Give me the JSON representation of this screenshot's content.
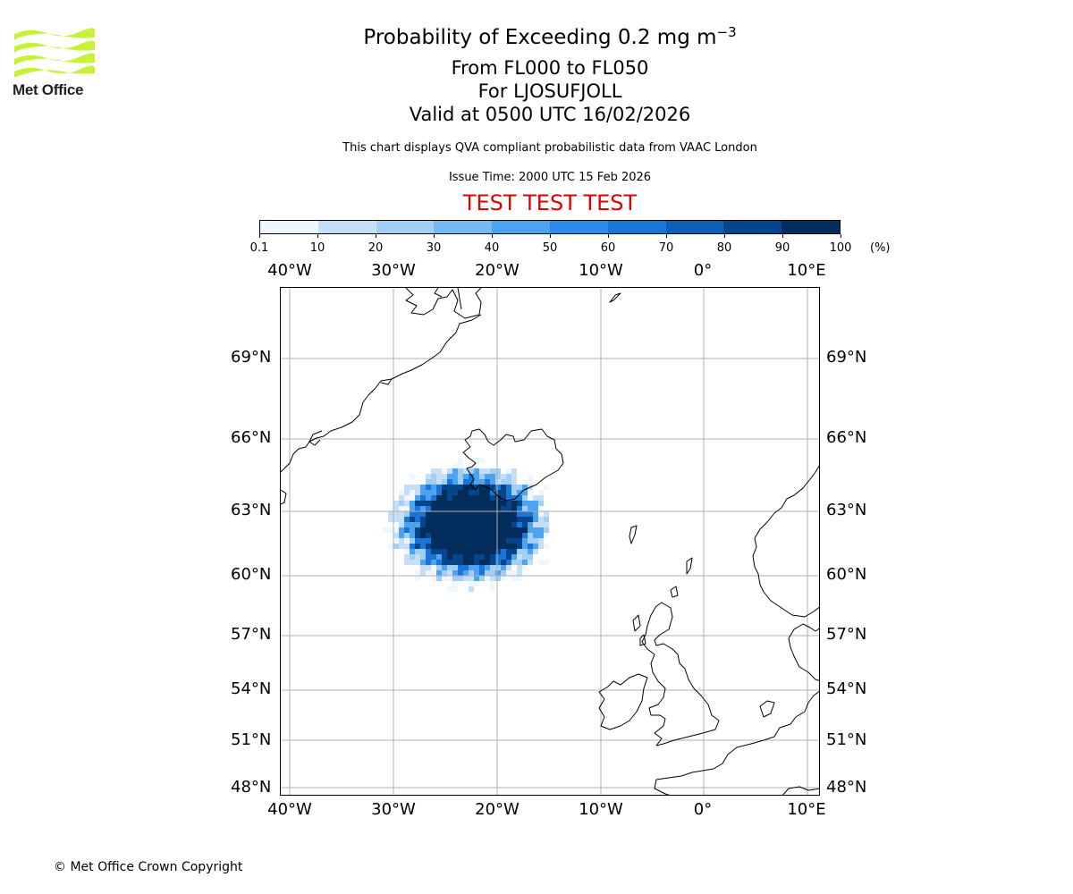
{
  "header": {
    "title_prefix": "Probability of Exceeding 0.2 mg m",
    "title_exponent": "−3",
    "flight_levels": "From FL000 to FL050",
    "volcano": "For LJOSUFJOLL",
    "valid": "Valid at 0500 UTC 16/02/2026",
    "subtitle": "This chart displays QVA compliant probabilistic data from VAAC London",
    "issue_time": "Issue Time: 2000 UTC 15 Feb 2026",
    "test_banner": "TEST TEST TEST"
  },
  "logo": {
    "text": "Met Office",
    "icon": "met-office-waves-icon",
    "color": "#c8f23a"
  },
  "colorbar": {
    "labels": [
      "0.1",
      "10",
      "20",
      "30",
      "40",
      "50",
      "60",
      "70",
      "80",
      "90",
      "100"
    ],
    "unit": "(%)",
    "colors": [
      "#f0f6fd",
      "#c6dff8",
      "#a2cdf5",
      "#78b8f0",
      "#4ea3ee",
      "#2b8ceb",
      "#1876d6",
      "#0c5fb4",
      "#06458a",
      "#032d5d"
    ]
  },
  "map": {
    "lon_labels": [
      "40°W",
      "30°W",
      "20°W",
      "10°W",
      "0°",
      "10°E"
    ],
    "lat_labels": [
      "69°N",
      "66°N",
      "63°N",
      "60°N",
      "57°N",
      "54°N",
      "51°N",
      "48°N"
    ],
    "gridline_color": "#b0b0b0",
    "coastline_color": "#000000"
  },
  "footer": {
    "copyright": "© Met Office Crown Copyright"
  }
}
